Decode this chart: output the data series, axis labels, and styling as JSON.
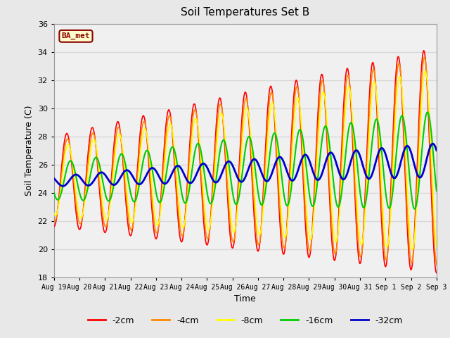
{
  "title": "Soil Temperatures Set B",
  "xlabel": "Time",
  "ylabel": "Soil Temperature (C)",
  "ylim": [
    18,
    36
  ],
  "legend_label": "BA_met",
  "depths": [
    "-2cm",
    "-4cm",
    "-8cm",
    "-16cm",
    "-32cm"
  ],
  "colors": [
    "#ff0000",
    "#ff8800",
    "#ffff00",
    "#00cc00",
    "#0000cc"
  ],
  "linewidths": [
    1.2,
    1.2,
    1.2,
    1.5,
    2.0
  ],
  "bg_color": "#e8e8e8",
  "plot_bg_color": "#f0f0f0",
  "n_points": 720,
  "base_temp": 24.8,
  "trend": 1.5,
  "amp_starts": [
    3.2,
    2.8,
    2.4,
    1.3,
    0.35
  ],
  "amp_ends": [
    8.0,
    7.5,
    6.5,
    3.5,
    1.2
  ],
  "phases": [
    0.0,
    0.15,
    0.35,
    0.9,
    2.2
  ],
  "xtick_labels": [
    "Aug 19",
    "Aug 20",
    "Aug 21",
    "Aug 22",
    "Aug 23",
    "Aug 24",
    "Aug 25",
    "Aug 26",
    "Aug 27",
    "Aug 28",
    "Aug 29",
    "Aug 30",
    "Aug 31",
    "Sep 1",
    "Sep 2",
    "Sep 3"
  ],
  "ytick_vals": [
    18,
    20,
    22,
    24,
    26,
    28,
    30,
    32,
    34,
    36
  ],
  "grid_color": "#d8d8d8",
  "spine_color": "#999999",
  "figsize": [
    6.4,
    4.8
  ],
  "dpi": 100
}
